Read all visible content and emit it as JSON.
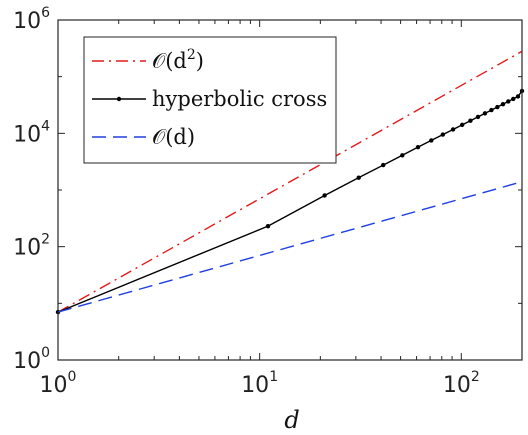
{
  "chart_data": {
    "type": "line",
    "xscale": "log",
    "yscale": "log",
    "xlim": [
      1,
      200
    ],
    "ylim": [
      1,
      1000000
    ],
    "xlabel": "d",
    "ylabel": "",
    "grid": false,
    "legend_position": "top-left",
    "x_ticks": [
      {
        "base": "10",
        "exp": "0",
        "value": 1
      },
      {
        "base": "10",
        "exp": "1",
        "value": 10
      },
      {
        "base": "10",
        "exp": "2",
        "value": 100
      }
    ],
    "y_ticks": [
      {
        "base": "10",
        "exp": "0",
        "value": 1
      },
      {
        "base": "10",
        "exp": "2",
        "value": 100
      },
      {
        "base": "10",
        "exp": "4",
        "value": 10000
      },
      {
        "base": "10",
        "exp": "6",
        "value": 1000000
      }
    ],
    "series": [
      {
        "name": "𝒪(d²)",
        "legend_main": "𝒪(d",
        "legend_sup": "2",
        "legend_tail": ")",
        "color": "#e31a1c",
        "style": "dashdot",
        "x": [
          1,
          200
        ],
        "y": [
          7,
          280000
        ]
      },
      {
        "name": "hyperbolic cross",
        "legend_main": "hyperbolic cross",
        "legend_sup": "",
        "legend_tail": "",
        "color": "#000000",
        "style": "solid-dots",
        "x": [
          1,
          11,
          21,
          31,
          41,
          51,
          61,
          71,
          81,
          91,
          101,
          111,
          121,
          131,
          141,
          151,
          161,
          171,
          181,
          191,
          200
        ],
        "y": [
          7,
          230,
          800,
          1650,
          2750,
          4100,
          5700,
          7500,
          9500,
          11700,
          14100,
          16700,
          19500,
          22500,
          25700,
          29100,
          32700,
          36500,
          40500,
          44700,
          56000
        ]
      },
      {
        "name": "𝒪(d)",
        "legend_main": "𝒪(d)",
        "legend_sup": "",
        "legend_tail": "",
        "color": "#1f3fe0",
        "style": "dashed",
        "x": [
          1,
          200
        ],
        "y": [
          7,
          1400
        ]
      }
    ]
  }
}
